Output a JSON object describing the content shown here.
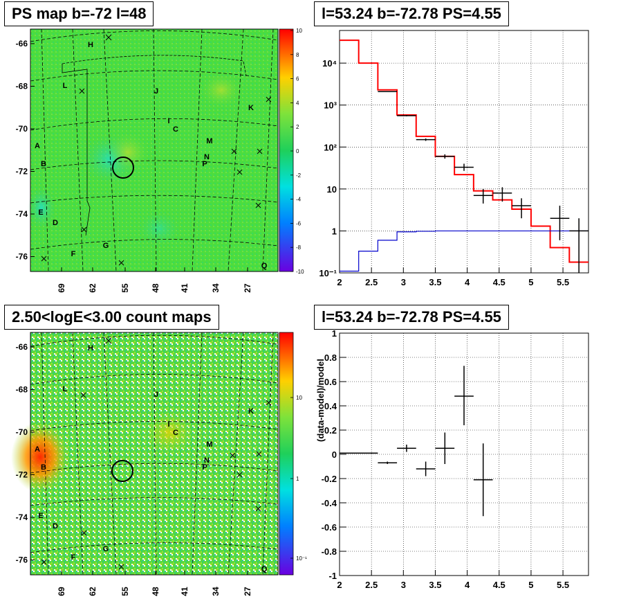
{
  "panels": {
    "ps_map": {
      "title": "PS map b=-72 l=48",
      "yticks": [
        "-66",
        "-68",
        "-70",
        "-72",
        "-74",
        "-76"
      ],
      "xticks": [
        "69",
        "62",
        "55",
        "48",
        "41",
        "34",
        "27"
      ],
      "colorbar_ticks": [
        "10",
        "8",
        "6",
        "4",
        "2",
        "0",
        "-2",
        "-4",
        "-6",
        "-8",
        "-10"
      ],
      "labels": [
        "H",
        "L",
        "J",
        "K",
        "I",
        "C",
        "A",
        "M",
        "N",
        "B",
        "P",
        "E",
        "D",
        "G",
        "F",
        "Q"
      ]
    },
    "count_map": {
      "title": "2.50<logE<3.00 count maps",
      "yticks": [
        "-66",
        "-68",
        "-70",
        "-72",
        "-74",
        "-76"
      ],
      "xticks": [
        "69",
        "62",
        "55",
        "48",
        "41",
        "34",
        "27"
      ],
      "colorbar_ticks": [
        "10",
        "1",
        "10⁻¹"
      ],
      "labels": [
        "H",
        "L",
        "J",
        "K",
        "I",
        "C",
        "A",
        "M",
        "N",
        "B",
        "P",
        "E",
        "D",
        "G",
        "F",
        "Q"
      ]
    },
    "spectrum": {
      "title": "l=53.24 b=-72.78 PS=4.55"
    },
    "residual": {
      "title": "l=53.24 b=-72.78 PS=4.55",
      "ylabel": "(data-model)/model"
    }
  },
  "colors": {
    "total_model": "#ff0000",
    "ps_model": "#0000cc",
    "data": "#000000",
    "map_background": "#4cdd3e"
  },
  "chart_data": [
    {
      "type": "heatmap",
      "title": "PS map b=-72 l=48",
      "xlabel": "",
      "ylabel": "",
      "xticks": [
        69,
        62,
        55,
        48,
        41,
        34,
        27
      ],
      "yticks": [
        -66,
        -68,
        -70,
        -72,
        -74,
        -76
      ],
      "colorbar_range": [
        -10,
        10
      ]
    },
    {
      "type": "heatmap",
      "title": "2.50<logE<3.00 count maps",
      "xlabel": "",
      "ylabel": "",
      "xticks": [
        69,
        62,
        55,
        48,
        41,
        34,
        27
      ],
      "yticks": [
        -66,
        -68,
        -70,
        -72,
        -74,
        -76
      ],
      "colorbar_scale": "log"
    },
    {
      "type": "line",
      "title": "l=53.24 b=-72.78 PS=4.55",
      "xlabel": "",
      "ylabel": "",
      "xlim": [
        2,
        5.9
      ],
      "ylim": [
        0.1,
        60000
      ],
      "yscale": "log",
      "yticks": [
        "10⁻¹",
        "1",
        "10",
        "10²",
        "10³",
        "10⁴"
      ],
      "xticks": [
        "2",
        "2.5",
        "3",
        "3.5",
        "4",
        "4.5",
        "5",
        "5.5"
      ],
      "grid": true,
      "series": [
        {
          "style": "step",
          "color": "#ff0000",
          "bin_edges": [
            2.0,
            2.3,
            2.6,
            2.9,
            3.2,
            3.5,
            3.8,
            4.1,
            4.4,
            4.7,
            5.0,
            5.3,
            5.6,
            5.9
          ],
          "values": [
            35000,
            10000,
            2300,
            580,
            180,
            60,
            22,
            9,
            5.5,
            3.3,
            1.3,
            0.4,
            0.18
          ]
        },
        {
          "style": "step",
          "color": "#0000cc",
          "bin_edges": [
            2.0,
            2.3,
            2.6,
            2.9,
            3.2,
            3.5,
            3.8,
            4.1,
            4.4,
            4.7,
            5.0,
            5.3,
            5.6,
            5.9
          ],
          "values": [
            0.11,
            0.33,
            0.6,
            0.95,
            0.98,
            1.0,
            1.0,
            1.0,
            1.0,
            1.0,
            1.0,
            1.0,
            1.0
          ]
        },
        {
          "style": "errorbar",
          "color": "#000000",
          "x": [
            2.75,
            3.05,
            3.35,
            3.65,
            3.95,
            4.25,
            4.55,
            4.85,
            5.45,
            5.75
          ],
          "xerr": 0.15,
          "y": [
            2100,
            560,
            150,
            60,
            33,
            7,
            8,
            4,
            2,
            1
          ],
          "yerr_low": [
            2050,
            540,
            140,
            53,
            27,
            4.5,
            5,
            2,
            0.6,
            0.1
          ],
          "yerr_high": [
            2150,
            580,
            160,
            67,
            40,
            10,
            11,
            6,
            4,
            2
          ]
        }
      ]
    },
    {
      "type": "scatter",
      "title": "l=53.24 b=-72.78 PS=4.55",
      "xlabel": "",
      "ylabel": "(data-model)/model",
      "xlim": [
        2,
        5.9
      ],
      "ylim": [
        -1,
        1
      ],
      "xticks": [
        "2",
        "2.5",
        "3",
        "3.5",
        "4",
        "4.5",
        "5",
        "5.5"
      ],
      "yticks": [
        "1",
        "0.8",
        "0.6",
        "0.4",
        "0.2",
        "0",
        "-0.2",
        "-0.4",
        "-0.6",
        "-0.8",
        "-1"
      ],
      "grid": true,
      "series": [
        {
          "style": "errorbar",
          "color": "#000000",
          "x": [
            2.3,
            2.75,
            3.05,
            3.35,
            3.65,
            3.95,
            4.25
          ],
          "xerr": [
            0.3,
            0.15,
            0.15,
            0.15,
            0.15,
            0.15,
            0.15
          ],
          "y": [
            0.01,
            -0.07,
            0.05,
            -0.12,
            0.05,
            0.48,
            -0.21
          ],
          "yerr_low": [
            0.01,
            -0.08,
            0.02,
            -0.18,
            -0.08,
            0.24,
            -0.51
          ],
          "yerr_high": [
            0.01,
            -0.06,
            0.08,
            -0.06,
            0.18,
            0.73,
            0.09
          ]
        }
      ]
    }
  ]
}
